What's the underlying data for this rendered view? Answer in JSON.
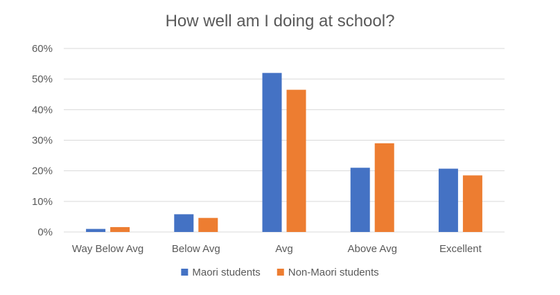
{
  "chart_data": {
    "type": "bar",
    "title": "How well am I doing at school?",
    "xlabel": "",
    "ylabel": "",
    "categories": [
      "Way Below Avg",
      "Below Avg",
      "Avg",
      "Above Avg",
      "Excellent"
    ],
    "series": [
      {
        "name": "Maori students",
        "color": "#4472C4",
        "values": [
          0.01,
          0.058,
          0.52,
          0.21,
          0.207
        ]
      },
      {
        "name": "Non-Maori students",
        "color": "#ED7D31",
        "values": [
          0.016,
          0.046,
          0.465,
          0.29,
          0.185
        ]
      }
    ],
    "ylim": [
      0,
      0.6
    ],
    "yticks": [
      0,
      0.1,
      0.2,
      0.3,
      0.4,
      0.5,
      0.6
    ],
    "ytick_labels": [
      "0%",
      "10%",
      "20%",
      "30%",
      "40%",
      "50%",
      "60%"
    ],
    "grid": true,
    "legend_position": "bottom",
    "gridline_color": "#D9D9D9",
    "text_color": "#595959"
  }
}
